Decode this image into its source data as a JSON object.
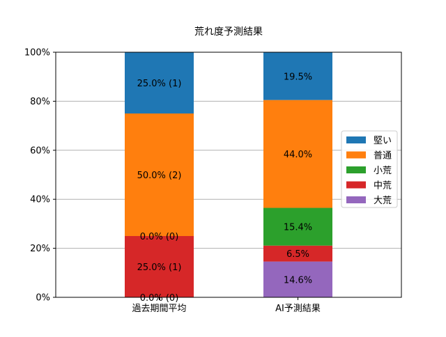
{
  "chart_data": {
    "type": "bar",
    "stacked": true,
    "title": "荒れ度予測結果",
    "xlabel": "",
    "ylabel": "",
    "ylim": [
      0,
      100
    ],
    "yticks": [
      "0%",
      "20%",
      "40%",
      "60%",
      "80%",
      "100%"
    ],
    "ytick_values": [
      0,
      20,
      40,
      60,
      80,
      100
    ],
    "grid": "y",
    "legend_position": "right",
    "categories": [
      "過去期間平均",
      "AI予測結果"
    ],
    "series": [
      {
        "name": "大荒",
        "color": "#9467bd",
        "values": [
          0.0,
          14.6
        ],
        "labels": [
          "0.0% (0)",
          "14.6%"
        ]
      },
      {
        "name": "中荒",
        "color": "#d62728",
        "values": [
          25.0,
          6.5
        ],
        "labels": [
          "25.0% (1)",
          "6.5%"
        ]
      },
      {
        "name": "小荒",
        "color": "#2ca02c",
        "values": [
          0.0,
          15.4
        ],
        "labels": [
          "0.0% (0)",
          "15.4%"
        ]
      },
      {
        "name": "普通",
        "color": "#ff7f0e",
        "values": [
          50.0,
          44.0
        ],
        "labels": [
          "50.0% (2)",
          "44.0%"
        ]
      },
      {
        "name": "堅い",
        "color": "#1f77b4",
        "values": [
          25.0,
          19.5
        ],
        "labels": [
          "25.0% (1)",
          "19.5%"
        ]
      }
    ],
    "legend_order": [
      "堅い",
      "普通",
      "小荒",
      "中荒",
      "大荒"
    ]
  }
}
